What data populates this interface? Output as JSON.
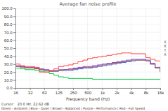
{
  "chart_data": {
    "type": "line",
    "line_style": "step",
    "title": "Average fan noise profile",
    "xlabel": "Frequency band (Hz)",
    "annotations": [
      "Cursor:   20.0 Hz, 22.62 dB",
      "Green - Ambient | Blue - Quiet | Brown - Balanced | Purple - Performance | Red - Full Speed",
      "A\nR\nT\nA"
    ],
    "log": "x",
    "grid": true,
    "xlim": [
      16,
      16000
    ],
    "xticks": [
      16,
      32,
      63,
      125,
      250,
      500,
      {
        "value": 1000,
        "label": "1k"
      },
      {
        "value": 2000,
        "label": "2k"
      },
      {
        "value": 4000,
        "label": "4k"
      },
      {
        "value": 8000,
        "label": "8k"
      },
      {
        "value": 16000,
        "label": "16k"
      }
    ],
    "ylim": [
      0,
      100
    ],
    "yticks": [
      {
        "value": 0,
        "label": "0.0"
      },
      {
        "value": 10,
        "label": "10.0"
      },
      {
        "value": 20,
        "label": "20.0"
      },
      {
        "value": 30,
        "label": "30.0"
      },
      {
        "value": 40,
        "label": "40.0"
      },
      {
        "value": 50,
        "label": "50.0"
      },
      {
        "value": 60,
        "label": "60.0"
      },
      {
        "value": 70,
        "label": "70.0"
      },
      {
        "value": 80,
        "label": "80.0"
      },
      {
        "value": 90,
        "label": "90.0"
      },
      {
        "value": 100,
        "label": "100.0"
      }
    ],
    "x": [
      16,
      20,
      25,
      32,
      40,
      50,
      63,
      80,
      100,
      125,
      160,
      200,
      250,
      315,
      400,
      500,
      630,
      800,
      1000,
      1250,
      1600,
      2000,
      2500,
      3150,
      4000,
      5000,
      6300,
      8000,
      10000,
      12500,
      16000
    ],
    "series": [
      {
        "color": "#00cc44",
        "values": [
          25,
          24,
          23,
          23,
          22,
          21,
          20,
          18,
          16,
          14,
          13,
          12,
          12,
          12,
          12,
          12,
          11,
          11,
          11,
          11,
          11,
          11,
          11,
          11,
          11,
          11,
          11,
          11,
          11,
          11,
          11
        ]
      },
      {
        "color": "#4466ff",
        "values": [
          27,
          27,
          25,
          25,
          24,
          23,
          22,
          21,
          21,
          22,
          22,
          22,
          23,
          24,
          25,
          25,
          26,
          27,
          28,
          29,
          30,
          31,
          32,
          33,
          34,
          35,
          35,
          34,
          30,
          25,
          20
        ]
      },
      {
        "color": "#aa6622",
        "values": [
          27,
          26,
          25,
          25,
          24,
          23,
          22,
          21,
          21,
          22,
          23,
          23,
          24,
          25,
          26,
          26,
          27,
          28,
          29,
          30,
          31,
          32,
          33,
          34,
          35,
          35,
          35,
          34,
          30,
          25,
          20
        ]
      },
      {
        "color": "#8844cc",
        "values": [
          28,
          27,
          26,
          26,
          25,
          24,
          23,
          22,
          22,
          23,
          23,
          24,
          25,
          26,
          27,
          27,
          28,
          29,
          30,
          31,
          32,
          33,
          34,
          35,
          36,
          36,
          36,
          35,
          31,
          26,
          21
        ]
      },
      {
        "color": "#ff4444",
        "values": [
          30,
          28,
          27,
          27,
          26,
          20,
          20,
          21,
          24,
          27,
          28,
          29,
          31,
          33,
          35,
          37,
          38,
          39,
          40,
          41,
          42,
          43,
          44,
          44,
          43,
          43,
          43,
          38,
          36,
          34,
          34
        ]
      }
    ]
  }
}
